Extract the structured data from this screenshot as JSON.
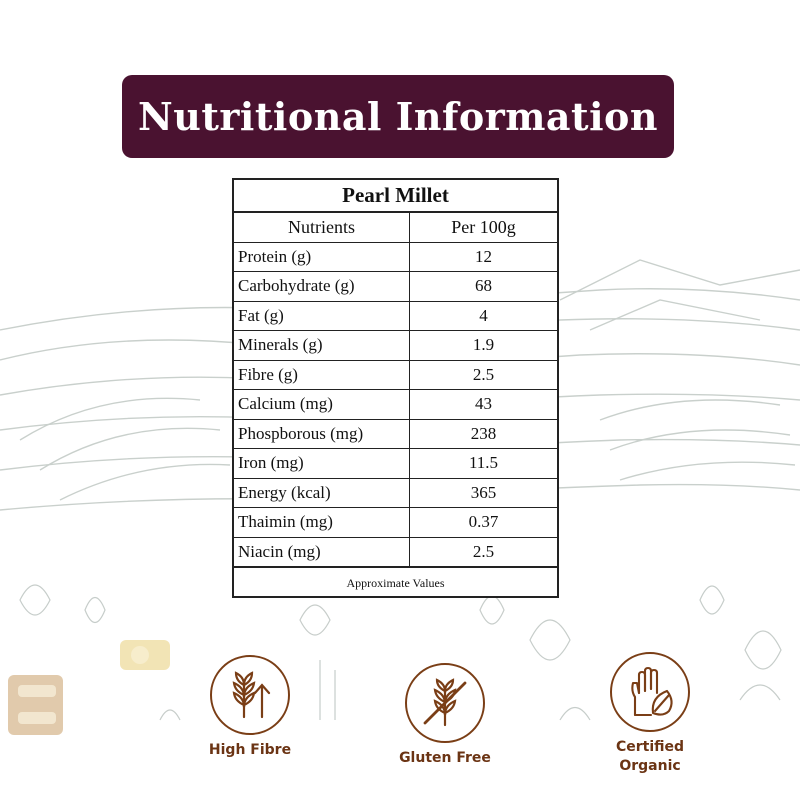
{
  "title": "Nutritional Information",
  "table": {
    "product": "Pearl Millet",
    "header": {
      "nutrient": "Nutrients",
      "per": "Per 100g"
    },
    "rows": [
      {
        "nutrient": "Protein (g)",
        "value": "12"
      },
      {
        "nutrient": "Carbohydrate (g)",
        "value": "68"
      },
      {
        "nutrient": "Fat (g)",
        "value": "4"
      },
      {
        "nutrient": "Minerals (g)",
        "value": "1.9"
      },
      {
        "nutrient": "Fibre (g)",
        "value": "2.5"
      },
      {
        "nutrient": "Calcium (mg)",
        "value": "43"
      },
      {
        "nutrient": "Phospborous (mg)",
        "value": "238"
      },
      {
        "nutrient": "Iron (mg)",
        "value": "11.5"
      },
      {
        "nutrient": "Energy (kcal)",
        "value": "365"
      },
      {
        "nutrient": "Thaimin (mg)",
        "value": "0.37"
      },
      {
        "nutrient": "Niacin (mg)",
        "value": "2.5"
      }
    ],
    "footnote": "Approximate Values"
  },
  "badges": [
    {
      "label": "High Fibre",
      "icon": "wheat-arrow-up-icon"
    },
    {
      "label": "Gluten Free",
      "icon": "wheat-crossed-icon"
    },
    {
      "label": "Certified Organic",
      "icon": "hand-leaf-icon"
    }
  ],
  "colors": {
    "banner": "#4a1230",
    "badge_brown": "#7a3e16",
    "background_sketch": "#c9d0cc"
  }
}
